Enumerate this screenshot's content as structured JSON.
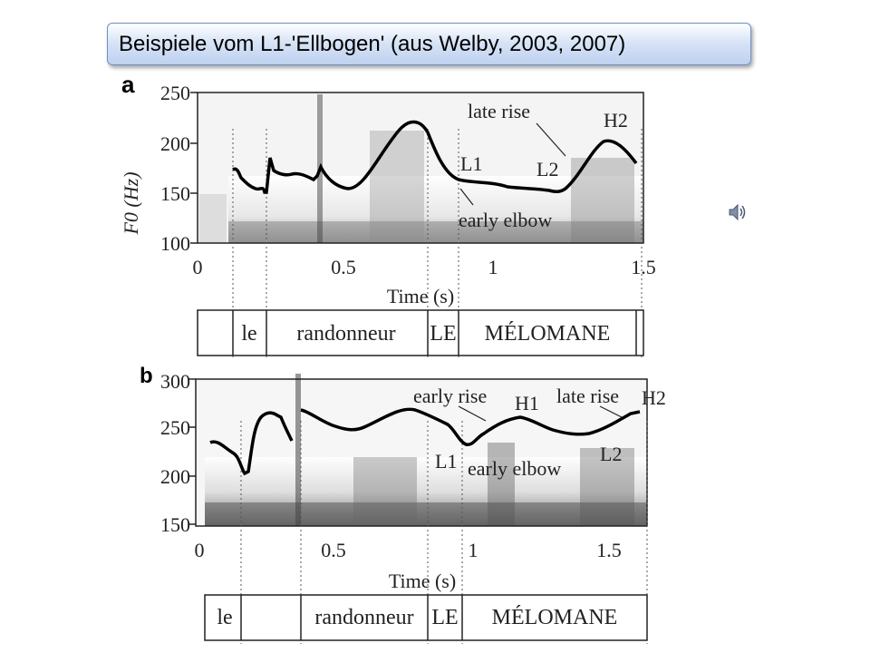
{
  "slide": {
    "title": "Beispiele vom L1-'Ellbogen' (aus Welby, 2003, 2007)"
  },
  "panel_a": {
    "label": "a",
    "y_axis_label": "F0 (Hz)",
    "y_ticks": [
      "100",
      "150",
      "200",
      "250"
    ],
    "x_ticks": [
      "0",
      "0.5",
      "1",
      "1.5"
    ],
    "x_label": "Time (s)",
    "annotations": [
      "late rise",
      "H2",
      "L1",
      "L2",
      "early elbow"
    ],
    "words": [
      "le",
      "randonneur",
      "LE",
      "MÉLOMANE"
    ]
  },
  "panel_b": {
    "label": "b",
    "y_ticks": [
      "150",
      "200",
      "250",
      "300"
    ],
    "x_ticks": [
      "0",
      "0.5",
      "1",
      "1.5"
    ],
    "x_label": "Time (s)",
    "annotations": [
      "early rise",
      "H1",
      "late rise",
      "H2",
      "L1",
      "early elbow",
      "L2"
    ],
    "words": [
      "le",
      "randonneur",
      "LE",
      "MÉLOMANE"
    ]
  },
  "audio_icon": "speaker-icon",
  "colors": {
    "title_fill": "#c9d9f1",
    "title_border": "#6f8fc8"
  }
}
